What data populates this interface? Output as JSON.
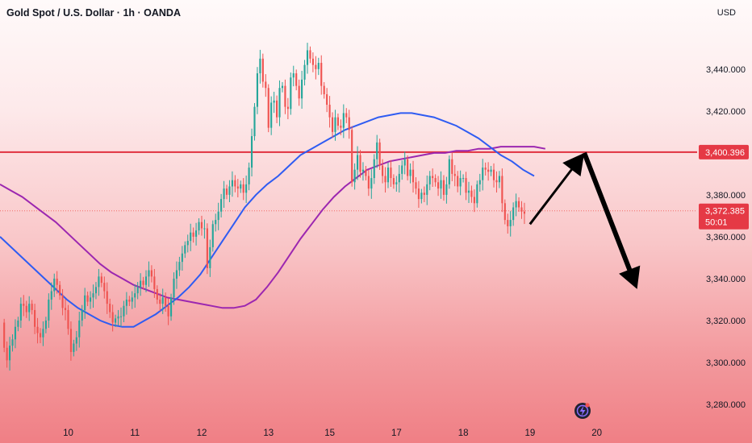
{
  "header": {
    "title": "Gold Spot / U.S. Dollar · 1h · OANDA",
    "currency": "USD"
  },
  "colors": {
    "up": "#26a69a",
    "down": "#ef5350",
    "resistance": "#e0303f",
    "ma_fast": "#2f5cf2",
    "ma_slow": "#9c27b0",
    "arrow": "#000000",
    "tag_bg": "#e53945"
  },
  "chart_data": {
    "type": "candlestick",
    "ylim": [
      3270,
      3463
    ],
    "y_ticks": [
      3280,
      3300,
      3320,
      3340,
      3360,
      3380,
      3400,
      3420,
      3440
    ],
    "y_tick_labels": [
      "3,280.000",
      "3,300.000",
      "3,320.000",
      "3,340.000",
      "3,360.000",
      "3,380.000",
      "3,400.000",
      "3,420.000",
      "3,440.000"
    ],
    "x_ticks": [
      {
        "label": "10",
        "pos": 0.5
      },
      {
        "label": "11",
        "pos": 24.5
      },
      {
        "label": "12",
        "pos": 48.5
      },
      {
        "label": "13",
        "pos": 72.5
      },
      {
        "label": "15",
        "pos": 94.5
      },
      {
        "label": "17",
        "pos": 118.5
      },
      {
        "label": "18",
        "pos": 142.5
      },
      {
        "label": "19",
        "pos": 166.5
      },
      {
        "label": "20",
        "pos": 190.5
      }
    ],
    "x_range": [
      -24,
      226
    ],
    "resistance_level": 3400.396,
    "resistance_label": "3,400.396",
    "current_price": 3372.385,
    "current_price_label": "3,372.385",
    "countdown": "50:01",
    "ohlc_key": {
      "x": [
        -22.5,
        -21.5,
        -20.5,
        -19.5,
        -18.5,
        -17.5,
        -16.5,
        -15.5,
        -14.5,
        -13.5,
        -12.5,
        -11.5,
        -10.5,
        -9.5,
        -8.5,
        -7.5,
        -6.5,
        -5.5,
        -4.5,
        -3.5,
        -2.5,
        -1.5,
        -0.5,
        0.5,
        1.5,
        2.5,
        3.5,
        4.5,
        5.5,
        6.5,
        7.5,
        8.5,
        9.5,
        10.5,
        11.5,
        12.5,
        13.5,
        14.5,
        15.5,
        16.5,
        17.5,
        18.5,
        19.5,
        20.5,
        21.5,
        22.5,
        23.5,
        24.5,
        25.5,
        26.5,
        27.5,
        28.5,
        29.5,
        30.5,
        31.5,
        32.5,
        33.5,
        34.5,
        35.5,
        36.5,
        37.5,
        38.5,
        39.5,
        40.5,
        41.5,
        42.5,
        43.5,
        44.5,
        45.5,
        46.5,
        47.5,
        48.5,
        49.5,
        50.5,
        51.5,
        52.5,
        53.5,
        54.5,
        55.5,
        56.5,
        57.5,
        58.5,
        59.5,
        60.5,
        61.5,
        62.5,
        63.5,
        64.5,
        65.5,
        66.5,
        67.5,
        68.5,
        69.5,
        70.5,
        71.5,
        72.5,
        73.5,
        74.5,
        75.5,
        76.5,
        77.5,
        78.5,
        79.5,
        80.5,
        81.5,
        82.5,
        83.5,
        84.5,
        85.5,
        86.5,
        87.5,
        88.5,
        89.5,
        90.5,
        91.5,
        92.5,
        93.5,
        94.5,
        95.5,
        96.5,
        97.5,
        98.5,
        99.5,
        100.5,
        101.5,
        102.5,
        103.5,
        104.5,
        105.5,
        106.5,
        107.5,
        108.5,
        109.5,
        110.5,
        111.5,
        112.5,
        113.5,
        114.5,
        115.5,
        116.5,
        117.5,
        118.5,
        119.5,
        120.5,
        121.5,
        122.5,
        123.5,
        124.5,
        125.5,
        126.5,
        127.5,
        128.5,
        129.5,
        130.5,
        131.5,
        132.5,
        133.5,
        134.5,
        135.5,
        136.5,
        137.5,
        138.5,
        139.5,
        140.5,
        141.5,
        142.5,
        143.5,
        144.5,
        145.5,
        146.5,
        147.5,
        148.5,
        149.5,
        150.5,
        151.5,
        152.5,
        153.5,
        154.5,
        155.5,
        156.5,
        157.5,
        158.5,
        159.5,
        160.5,
        161.5,
        162.5,
        163.5,
        164.5,
        165.5,
        166.5,
        167.5,
        168.5,
        169.5,
        170.5
      ],
      "o": [
        3319,
        3307,
        3301,
        3308,
        3311,
        3317,
        3320,
        3328,
        3327,
        3324,
        3328,
        3325,
        3317,
        3314,
        3312,
        3316,
        3320,
        3330,
        3334,
        3340,
        3337,
        3332,
        3326,
        3325,
        3316,
        3305,
        3309,
        3312,
        3320,
        3325,
        3332,
        3329,
        3331,
        3333,
        3336,
        3341,
        3338,
        3334,
        3328,
        3324,
        3319,
        3321,
        3322,
        3322,
        3327,
        3330,
        3329,
        3331,
        3333,
        3336,
        3339,
        3337,
        3341,
        3344,
        3341,
        3335,
        3330,
        3328,
        3331,
        3327,
        3322,
        3331,
        3340,
        3344,
        3348,
        3352,
        3356,
        3358,
        3362,
        3360,
        3363,
        3367,
        3364,
        3364,
        3345,
        3355,
        3366,
        3368,
        3372,
        3378,
        3383,
        3380,
        3384,
        3387,
        3384,
        3383,
        3385,
        3381,
        3385,
        3393,
        3408,
        3422,
        3438,
        3445,
        3434,
        3431,
        3412,
        3424,
        3425,
        3417,
        3431,
        3432,
        3422,
        3421,
        3436,
        3438,
        3432,
        3426,
        3435,
        3442,
        3449,
        3445,
        3442,
        3440,
        3443,
        3432,
        3428,
        3423,
        3417,
        3410,
        3417,
        3413,
        3412,
        3419,
        3417,
        3411,
        3386,
        3392,
        3399,
        3391,
        3392,
        3389,
        3383,
        3388,
        3397,
        3405,
        3394,
        3389,
        3386,
        3393,
        3388,
        3385,
        3386,
        3390,
        3394,
        3397,
        3389,
        3392,
        3386,
        3383,
        3378,
        3381,
        3380,
        3385,
        3389,
        3388,
        3386,
        3383,
        3387,
        3380,
        3385,
        3397,
        3390,
        3389,
        3384,
        3388,
        3388,
        3381,
        3382,
        3379,
        3376,
        3385,
        3387,
        3393,
        3392,
        3391,
        3392,
        3387,
        3386,
        3389,
        3376,
        3368,
        3365,
        3368,
        3374,
        3377,
        3374,
        3372
      ],
      "c": [
        3307,
        3301,
        3308,
        3311,
        3317,
        3320,
        3328,
        3327,
        3324,
        3328,
        3325,
        3317,
        3314,
        3312,
        3316,
        3320,
        3330,
        3334,
        3340,
        3337,
        3332,
        3326,
        3325,
        3316,
        3305,
        3309,
        3312,
        3320,
        3325,
        3332,
        3329,
        3331,
        3333,
        3336,
        3341,
        3338,
        3334,
        3328,
        3324,
        3319,
        3321,
        3322,
        3322,
        3327,
        3330,
        3329,
        3331,
        3333,
        3336,
        3339,
        3337,
        3341,
        3344,
        3341,
        3335,
        3330,
        3328,
        3331,
        3327,
        3322,
        3331,
        3340,
        3344,
        3348,
        3352,
        3356,
        3358,
        3362,
        3360,
        3363,
        3367,
        3364,
        3364,
        3345,
        3355,
        3366,
        3368,
        3372,
        3378,
        3383,
        3380,
        3384,
        3387,
        3384,
        3383,
        3385,
        3381,
        3385,
        3393,
        3408,
        3422,
        3438,
        3445,
        3434,
        3431,
        3412,
        3424,
        3425,
        3417,
        3431,
        3432,
        3422,
        3421,
        3436,
        3438,
        3432,
        3426,
        3435,
        3442,
        3449,
        3445,
        3442,
        3440,
        3443,
        3432,
        3428,
        3423,
        3417,
        3410,
        3417,
        3413,
        3412,
        3419,
        3417,
        3411,
        3386,
        3392,
        3399,
        3391,
        3392,
        3389,
        3383,
        3388,
        3397,
        3405,
        3394,
        3389,
        3386,
        3393,
        3388,
        3385,
        3386,
        3390,
        3394,
        3397,
        3389,
        3392,
        3386,
        3383,
        3378,
        3381,
        3380,
        3385,
        3389,
        3388,
        3386,
        3383,
        3387,
        3380,
        3385,
        3397,
        3390,
        3389,
        3384,
        3388,
        3388,
        3381,
        3382,
        3379,
        3376,
        3385,
        3387,
        3393,
        3392,
        3391,
        3392,
        3387,
        3386,
        3389,
        3376,
        3368,
        3365,
        3368,
        3374,
        3377,
        3374,
        3372,
        3371
      ]
    },
    "ma_fast": {
      "name": "",
      "x": [
        -24,
        -20,
        -16,
        -12,
        -8,
        -4,
        0,
        4,
        8,
        12,
        16,
        20,
        24,
        28,
        32,
        36,
        40,
        44,
        48,
        52,
        56,
        60,
        64,
        68,
        72,
        76,
        80,
        84,
        88,
        92,
        96,
        100,
        104,
        108,
        112,
        116,
        120,
        124,
        128,
        132,
        136,
        140,
        144,
        148,
        152,
        156,
        160,
        164,
        168
      ],
      "y": [
        3360,
        3355,
        3350,
        3345,
        3340,
        3335,
        3330,
        3326,
        3323,
        3320,
        3318,
        3317,
        3317,
        3320,
        3323,
        3327,
        3331,
        3336,
        3342,
        3350,
        3358,
        3366,
        3374,
        3380,
        3385,
        3389,
        3394,
        3399,
        3402,
        3405,
        3408,
        3411,
        3413,
        3415,
        3417,
        3418,
        3419,
        3419,
        3418,
        3417,
        3415,
        3413,
        3410,
        3407,
        3403,
        3399,
        3396,
        3392,
        3389
      ]
    },
    "ma_slow": {
      "name": "",
      "x": [
        -24,
        -20,
        -16,
        -12,
        -8,
        -4,
        0,
        4,
        8,
        12,
        16,
        20,
        24,
        28,
        32,
        36,
        40,
        44,
        48,
        52,
        56,
        60,
        64,
        68,
        72,
        76,
        80,
        84,
        88,
        92,
        96,
        100,
        104,
        108,
        112,
        116,
        120,
        124,
        128,
        132,
        136,
        140,
        144,
        148,
        152,
        156,
        160,
        164,
        168,
        172
      ],
      "y": [
        3385,
        3382,
        3379,
        3375,
        3371,
        3367,
        3362,
        3357,
        3352,
        3347,
        3343,
        3340,
        3337,
        3335,
        3333,
        3331,
        3330,
        3329,
        3328,
        3327,
        3326,
        3326,
        3327,
        3330,
        3336,
        3343,
        3351,
        3359,
        3366,
        3373,
        3379,
        3384,
        3388,
        3392,
        3394,
        3396,
        3397,
        3398,
        3399,
        3400,
        3400,
        3401,
        3401,
        3402,
        3402,
        3403,
        3403,
        3403,
        3403,
        3402
      ]
    },
    "projection_arrows": [
      {
        "from": [
          166.5,
          3366
        ],
        "to": [
          186,
          3400
        ]
      },
      {
        "from": [
          186,
          3400
        ],
        "to": [
          205,
          3335
        ]
      }
    ]
  }
}
